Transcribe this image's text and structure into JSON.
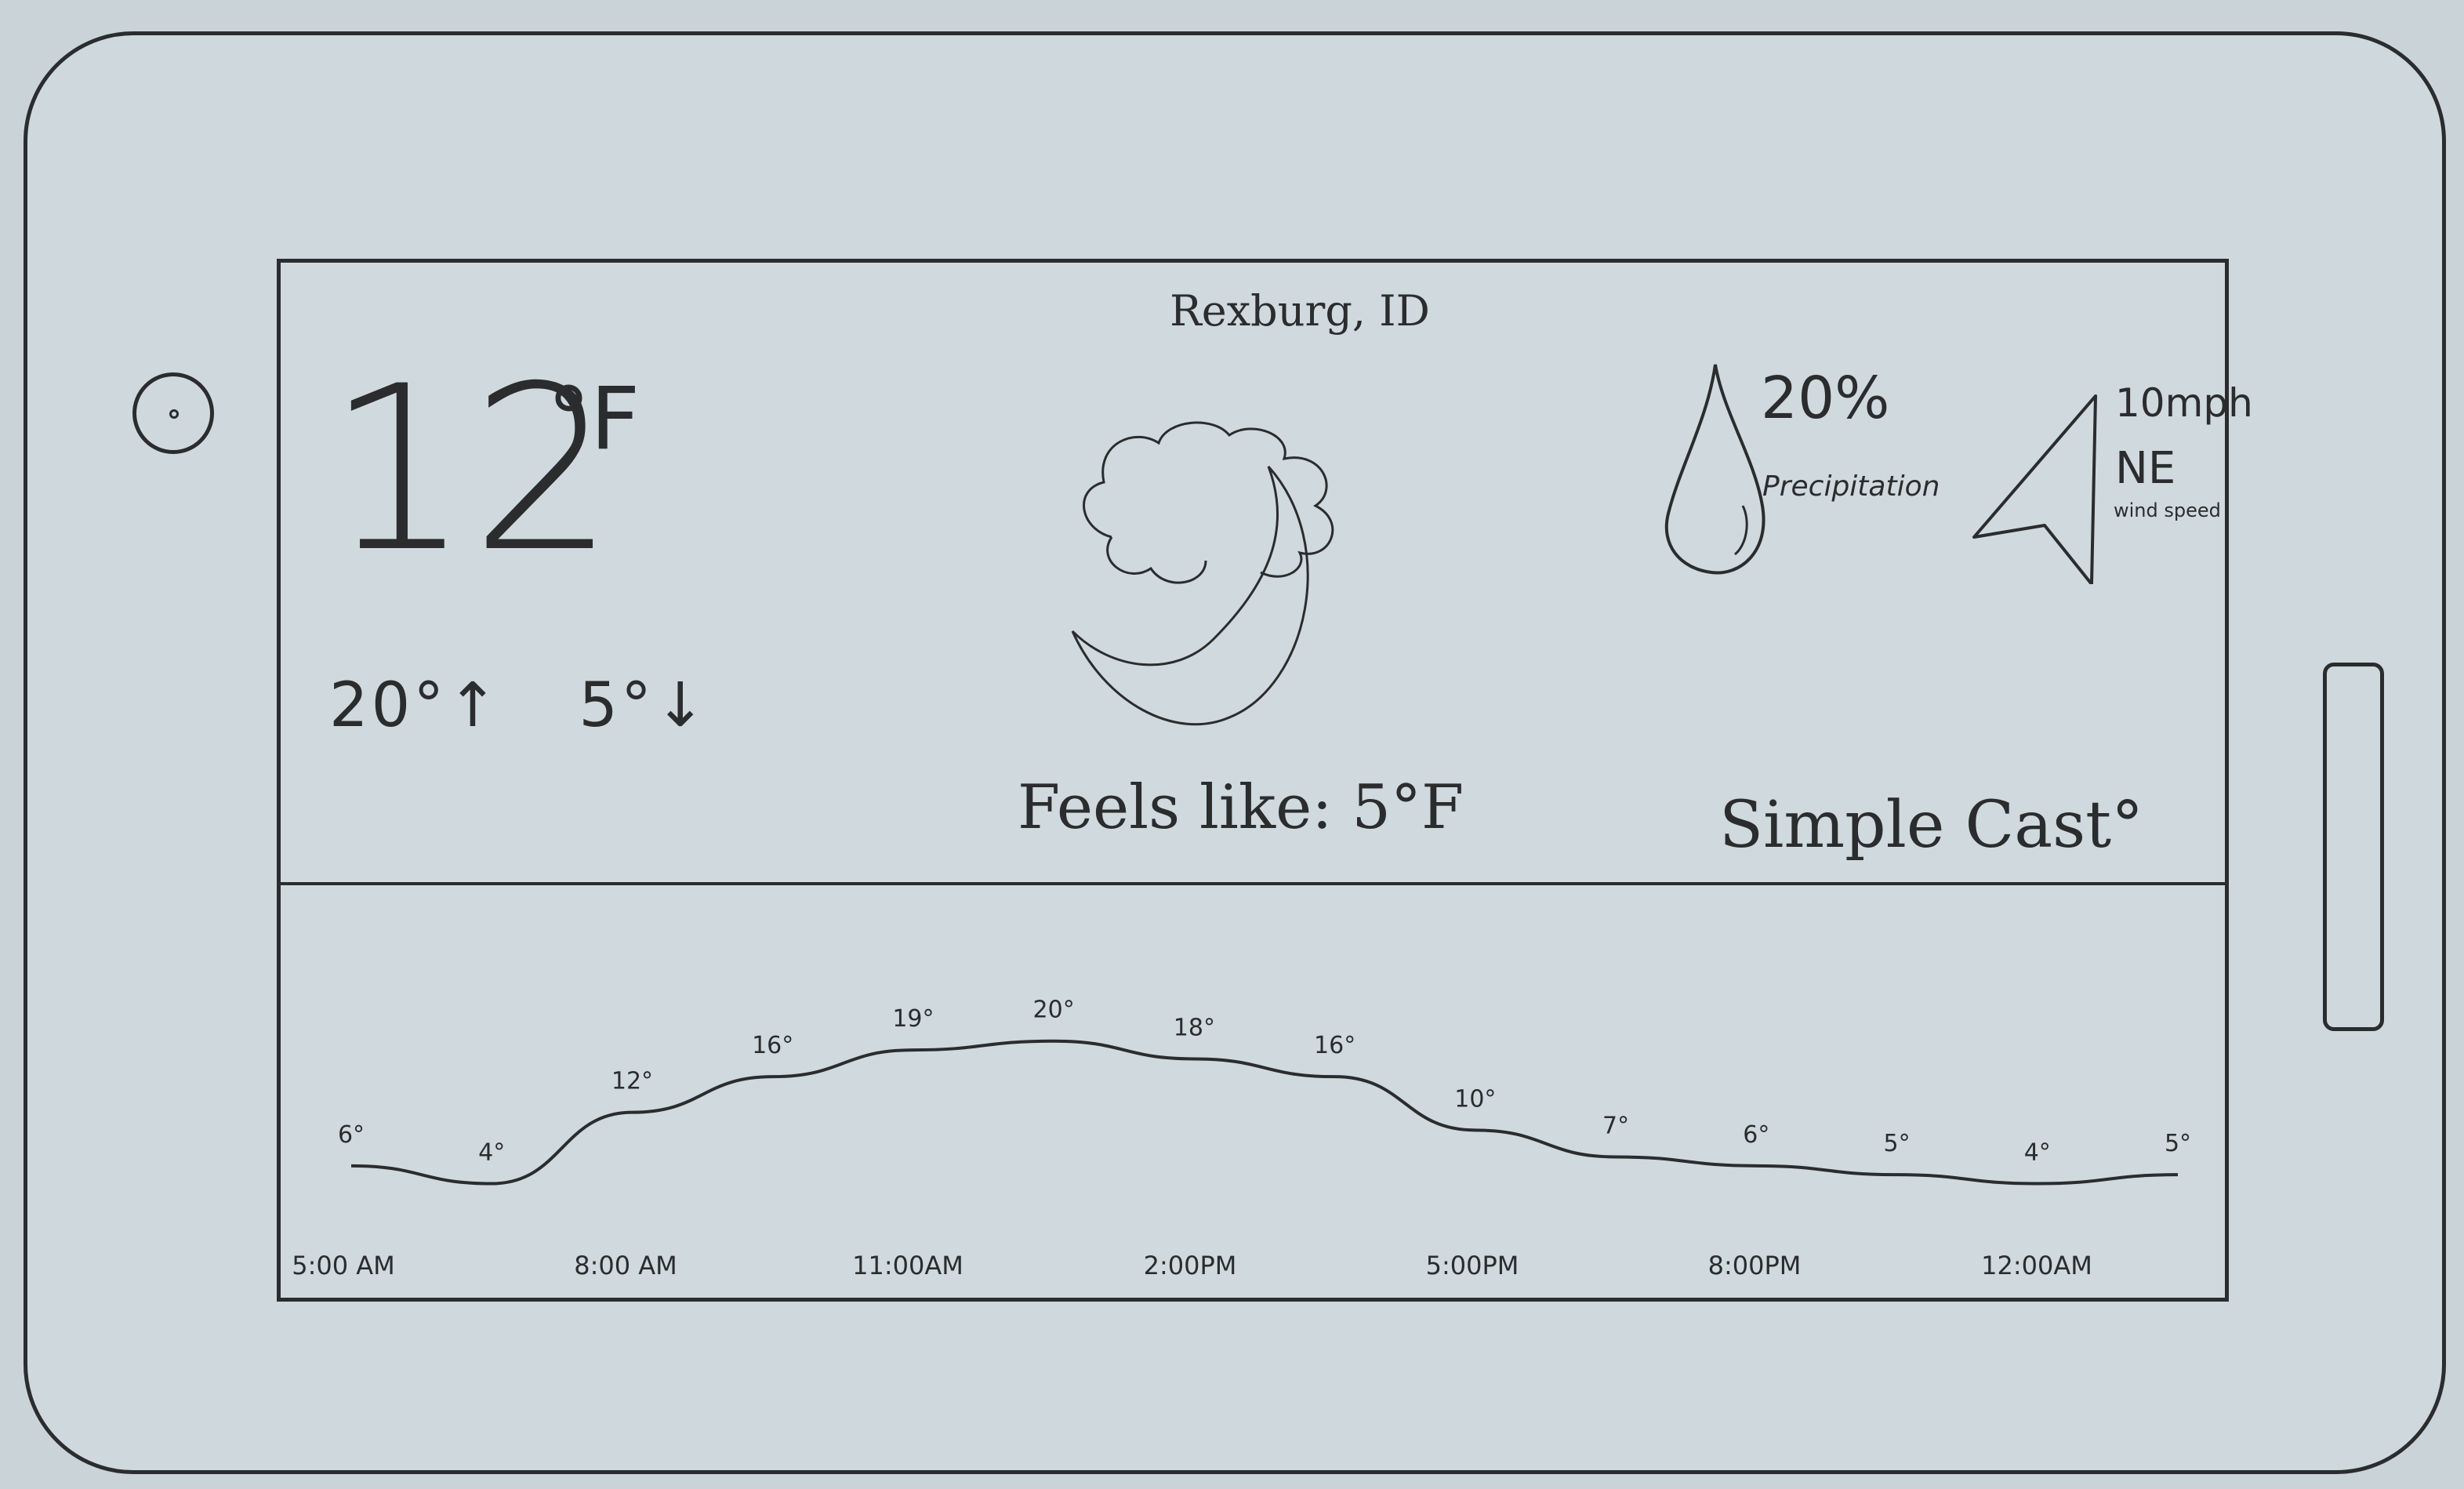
{
  "location": "Rexburg, ID",
  "current": {
    "temperature": "12",
    "unit": "°F",
    "high": "20°↑",
    "low": "5°↓",
    "feels_like": "Feels like: 5°F",
    "condition_icon": "moon-cloud-icon"
  },
  "precipitation": {
    "value": "20%",
    "label": "Precipitation",
    "icon": "raindrop-icon"
  },
  "wind": {
    "speed": "10mph",
    "direction": "NE",
    "label": "wind speed",
    "icon": "wind-direction-arrow-icon"
  },
  "app_name": "Simple Cast°",
  "chart_data": {
    "type": "line",
    "x_labels": [
      "5:00 AM",
      "8:00 AM",
      "11:00AM",
      "2:00PM",
      "5:00PM",
      "8:00PM",
      "12:00AM"
    ],
    "point_labels": [
      "6°",
      "4°",
      "12°",
      "16°",
      "19°",
      "20°",
      "18°",
      "16°",
      "10°",
      "7°",
      "6°",
      "5°",
      "4°",
      "5°"
    ],
    "values": [
      6,
      4,
      12,
      16,
      19,
      20,
      18,
      16,
      10,
      7,
      6,
      5,
      4,
      5
    ]
  }
}
